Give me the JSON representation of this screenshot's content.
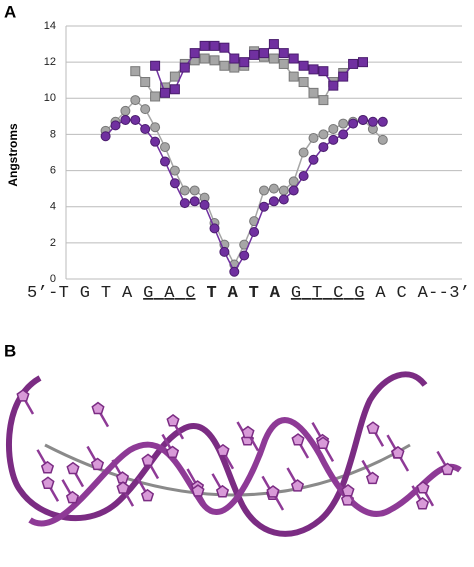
{
  "panel_a": {
    "label": "A"
  },
  "panel_b": {
    "label": "B"
  },
  "chart_data": {
    "type": "line",
    "y_label": "Angstroms",
    "sequence": [
      "5’-T G T A ",
      "G A C",
      " T A T A ",
      "G T C G",
      " A C A--3’"
    ],
    "xlim": [
      -3,
      37
    ],
    "ylim": [
      0,
      14
    ],
    "yticks": [
      0,
      2,
      4,
      6,
      8,
      10,
      12,
      14
    ],
    "grid": true,
    "series": [
      {
        "marker": "square",
        "color": "#a6a6a6",
        "stroke": "#777777",
        "x": [
          4,
          5,
          6,
          7,
          8,
          9,
          10,
          11,
          12,
          13,
          14,
          15,
          16,
          17,
          18,
          19,
          20,
          21,
          22,
          23,
          24,
          25
        ],
        "values": [
          11.5,
          10.9,
          10.1,
          10.6,
          11.2,
          11.9,
          12.1,
          12.2,
          12.1,
          11.8,
          11.7,
          11.8,
          12.6,
          12.3,
          12.2,
          11.9,
          11.2,
          10.9,
          10.3,
          9.9,
          10.9,
          11.4
        ]
      },
      {
        "marker": "square",
        "color": "#7030a0",
        "stroke": "#4b1d6e",
        "x": [
          6,
          7,
          8,
          9,
          10,
          11,
          12,
          13,
          14,
          15,
          16,
          17,
          18,
          19,
          20,
          21,
          22,
          23,
          24,
          25,
          26,
          27
        ],
        "values": [
          11.8,
          10.3,
          10.5,
          11.7,
          12.5,
          12.9,
          12.9,
          12.8,
          12.2,
          12.0,
          12.4,
          12.5,
          13.0,
          12.5,
          12.2,
          11.8,
          11.6,
          11.5,
          10.7,
          11.2,
          11.9,
          12.0
        ]
      },
      {
        "marker": "circle",
        "color": "#a6a6a6",
        "stroke": "#777777",
        "x": [
          1,
          2,
          3,
          4,
          5,
          6,
          7,
          8,
          9,
          10,
          11,
          12,
          13,
          14,
          15,
          16,
          17,
          18,
          19,
          20,
          21,
          22,
          23,
          24,
          25,
          26,
          27,
          28,
          29
        ],
        "values": [
          8.2,
          8.7,
          9.3,
          9.9,
          9.4,
          8.4,
          7.3,
          6.0,
          4.9,
          4.9,
          4.5,
          3.1,
          1.9,
          0.8,
          1.9,
          3.2,
          4.9,
          5.0,
          4.9,
          5.4,
          7.0,
          7.8,
          8.0,
          8.3,
          8.6,
          8.7,
          8.8,
          8.3,
          7.7
        ]
      },
      {
        "marker": "circle",
        "color": "#7030a0",
        "stroke": "#4b1d6e",
        "x": [
          1,
          2,
          3,
          4,
          5,
          6,
          7,
          8,
          9,
          10,
          11,
          12,
          13,
          14,
          15,
          16,
          17,
          18,
          19,
          20,
          21,
          22,
          23,
          24,
          25,
          26,
          27,
          28,
          29
        ],
        "values": [
          7.9,
          8.5,
          8.8,
          8.8,
          8.3,
          7.6,
          6.5,
          5.3,
          4.2,
          4.3,
          4.1,
          2.8,
          1.5,
          0.4,
          1.3,
          2.6,
          4.0,
          4.3,
          4.4,
          4.9,
          5.7,
          6.6,
          7.3,
          7.7,
          8.0,
          8.6,
          8.8,
          8.7,
          8.7
        ]
      }
    ]
  }
}
